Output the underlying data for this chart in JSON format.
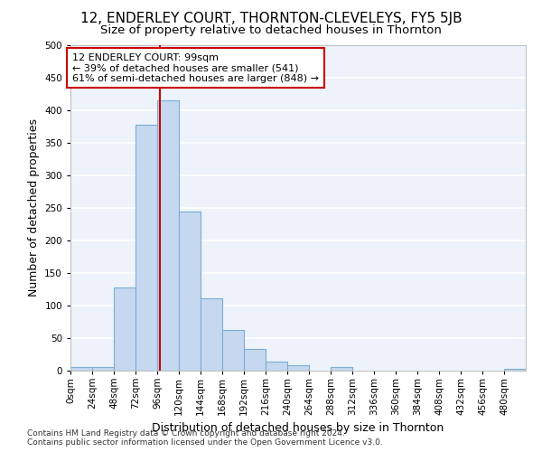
{
  "title1": "12, ENDERLEY COURT, THORNTON-CLEVELEYS, FY5 5JB",
  "title2": "Size of property relative to detached houses in Thornton",
  "xlabel": "Distribution of detached houses by size in Thornton",
  "ylabel": "Number of detached properties",
  "bar_color": "#c5d8f0",
  "bar_edge_color": "#7aadd4",
  "background_color": "#eef2fa",
  "grid_color": "#ffffff",
  "bin_edges": [
    0,
    24,
    48,
    72,
    96,
    120,
    144,
    168,
    192,
    216,
    240,
    264,
    288,
    312,
    336,
    360,
    384,
    408,
    432,
    456,
    480,
    504
  ],
  "bin_labels": [
    "0sqm",
    "24sqm",
    "48sqm",
    "72sqm",
    "96sqm",
    "120sqm",
    "144sqm",
    "168sqm",
    "192sqm",
    "216sqm",
    "240sqm",
    "264sqm",
    "288sqm",
    "312sqm",
    "336sqm",
    "360sqm",
    "384sqm",
    "408sqm",
    "432sqm",
    "456sqm",
    "480sqm"
  ],
  "bar_heights": [
    5,
    5,
    128,
    378,
    415,
    245,
    111,
    63,
    33,
    14,
    8,
    0,
    6,
    0,
    0,
    0,
    0,
    0,
    0,
    0,
    3
  ],
  "property_sqm": 99,
  "vline_color": "#cc0000",
  "annotation_line1": "12 ENDERLEY COURT: 99sqm",
  "annotation_line2": "← 39% of detached houses are smaller (541)",
  "annotation_line3": "61% of semi-detached houses are larger (848) →",
  "annotation_box_color": "#ffffff",
  "annotation_box_edge": "#cc0000",
  "footer1": "Contains HM Land Registry data © Crown copyright and database right 2024.",
  "footer2": "Contains public sector information licensed under the Open Government Licence v3.0.",
  "ylim": [
    0,
    500
  ],
  "title1_fontsize": 11,
  "title2_fontsize": 9.5,
  "xlabel_fontsize": 9,
  "ylabel_fontsize": 9,
  "tick_fontsize": 7.5,
  "annotation_fontsize": 8,
  "footer_fontsize": 6.5
}
